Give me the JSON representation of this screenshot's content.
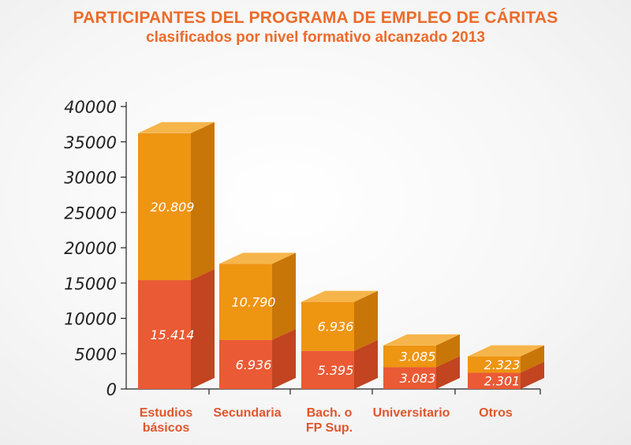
{
  "title": "PARTICIPANTES DEL PROGRAMA DE EMPLEO DE CÁRITAS",
  "subtitle": "clasificados por nivel formativo alcanzado 2013",
  "colors": {
    "title": "#ec6b2a",
    "series_lower_front": "#ea5a35",
    "series_lower_top": "#f2846a",
    "series_lower_side": "#c24420",
    "series_upper_front": "#ee9512",
    "series_upper_top": "#f6b54a",
    "series_upper_side": "#c97608",
    "category_text": "#e0562b",
    "axis": "#222222"
  },
  "chart_data": {
    "type": "bar",
    "stacked": true,
    "style": "3d",
    "categories": [
      "Estudios básicos",
      "Secundaria",
      "Bach. o FP Sup.",
      "Universitario",
      "Otros"
    ],
    "category_lines": [
      [
        "Estudios",
        "básicos"
      ],
      [
        "Secundaria"
      ],
      [
        "Bach. o",
        "FP Sup."
      ],
      [
        "Universitario"
      ],
      [
        "Otros"
      ]
    ],
    "series": [
      {
        "values": [
          15414,
          6936,
          5395,
          3083,
          2301
        ],
        "labels": [
          "15.414",
          "6.936",
          "5.395",
          "3.083",
          "2.301"
        ]
      },
      {
        "values": [
          20809,
          10790,
          6936,
          3085,
          2323
        ],
        "labels": [
          "20.809",
          "10.790",
          "6.936",
          "3.085",
          "2.323"
        ]
      }
    ],
    "ylim": [
      0,
      40000
    ],
    "yticks": [
      0,
      5000,
      10000,
      15000,
      20000,
      25000,
      30000,
      35000,
      40000
    ],
    "grid": false,
    "legend": "none"
  }
}
